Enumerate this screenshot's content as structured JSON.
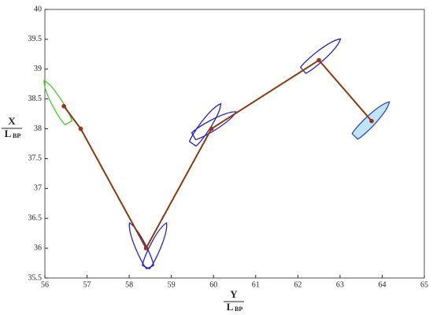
{
  "chart_data": {
    "type": "line",
    "x": [
      56.45,
      56.85,
      58.4,
      59.95,
      62.5,
      63.75
    ],
    "series": [
      {
        "color": "#8b3a0f",
        "marker_color": "#a0301a",
        "values": [
          38.38,
          38.0,
          36.0,
          38.0,
          39.15,
          38.13
        ]
      }
    ],
    "xlim": [
      56,
      65
    ],
    "xticks": [
      56,
      57,
      58,
      59,
      60,
      61,
      62,
      63,
      64,
      65
    ],
    "ylim": [
      35.5,
      40
    ],
    "yticks": [
      35.5,
      36,
      36.5,
      37,
      37.5,
      38,
      38.5,
      39,
      39.5,
      40
    ],
    "xlabel": {
      "main": "Y",
      "base": "L",
      "subscript": "BP"
    },
    "ylabel": {
      "main": "X",
      "base": "L",
      "subscript": "BP"
    }
  }
}
